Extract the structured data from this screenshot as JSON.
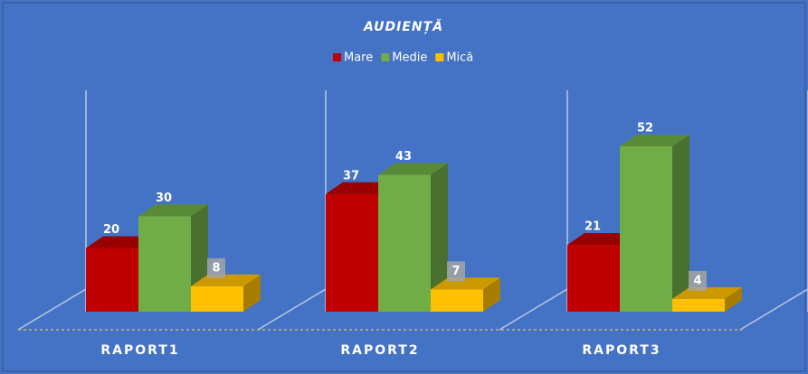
{
  "chart_data": {
    "type": "bar3d",
    "title": "AUDIENȚĂ",
    "categories": [
      "RAPORT1",
      "RAPORT2",
      "RAPORT3"
    ],
    "series": [
      {
        "name": "Mare",
        "color": "#c00000",
        "values": [
          20,
          37,
          21
        ]
      },
      {
        "name": "Medie",
        "color": "#70ad47",
        "values": [
          30,
          43,
          52
        ]
      },
      {
        "name": "Mică",
        "color": "#ffc000",
        "values": [
          8,
          7,
          4
        ]
      }
    ],
    "legend": "top"
  }
}
